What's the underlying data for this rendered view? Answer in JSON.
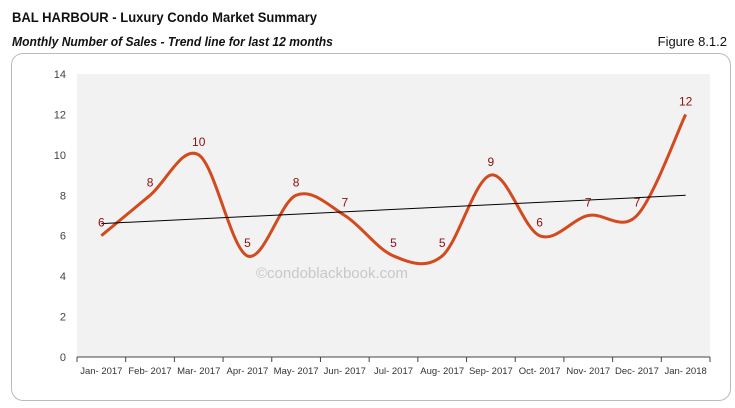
{
  "header": {
    "title": "BAL HARBOUR - Luxury Condo Market Summary",
    "subtitle": "Monthly Number of Sales - Trend line for last 12 months",
    "figure": "Figure 8.1.2"
  },
  "watermark": "©condoblackbook.com",
  "chart_data": {
    "type": "line",
    "categories": [
      "Jan- 2017",
      "Feb- 2017",
      "Mar- 2017",
      "Apr- 2017",
      "May- 2017",
      "Jun- 2017",
      "Jul- 2017",
      "Aug- 2017",
      "Sep- 2017",
      "Oct- 2017",
      "Nov- 2017",
      "Dec- 2017",
      "Jan- 2018"
    ],
    "values": [
      6,
      8,
      10,
      5,
      8,
      7,
      5,
      5,
      9,
      6,
      7,
      7,
      12
    ],
    "trendline": {
      "start": 6.6,
      "end": 8.0,
      "color": "#000000"
    },
    "ylim": [
      0,
      14
    ],
    "yticks": [
      0,
      2,
      4,
      6,
      8,
      10,
      12,
      14
    ],
    "smooth": true,
    "line_color": "#d24a1e",
    "label_color": "#8b1010",
    "plot_background": "#f2f2f2",
    "grid": false,
    "legend": "none"
  }
}
